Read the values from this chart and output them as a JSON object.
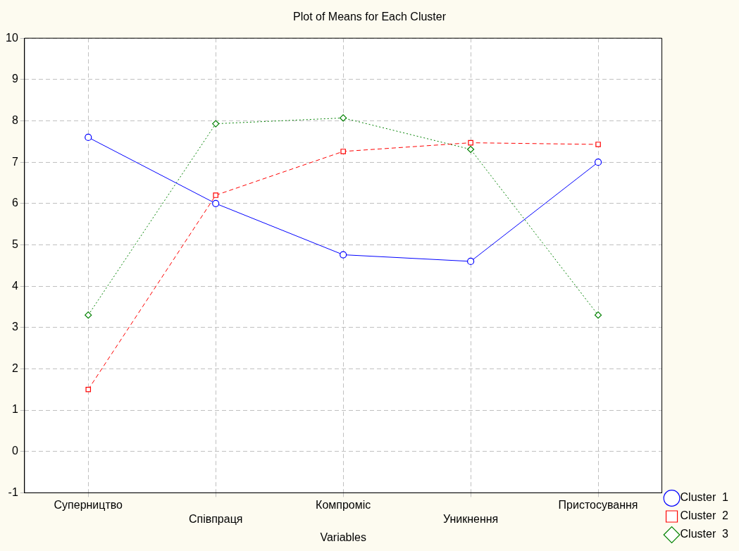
{
  "chart_data": {
    "type": "line",
    "title": "Plot of Means for Each Cluster",
    "xlabel": "Variables",
    "categories": [
      "Суперництво",
      "Співпраця",
      "Компроміс",
      "Уникнення",
      "Пристосування"
    ],
    "series": [
      {
        "name": "Cluster  1",
        "color": "#0000ff",
        "values": [
          7.6,
          6.0,
          4.76,
          4.6,
          7.0
        ],
        "marker": "circle",
        "line_style": "solid"
      },
      {
        "name": "Cluster  2",
        "color": "#ff0000",
        "values": [
          1.5,
          6.2,
          7.26,
          7.47,
          7.43
        ],
        "marker": "square",
        "line_style": "dashed"
      },
      {
        "name": "Cluster  3",
        "color": "#008000",
        "values": [
          3.3,
          7.93,
          8.07,
          7.31,
          3.3
        ],
        "marker": "diamond",
        "line_style": "dotted"
      }
    ],
    "ylim": [
      -1,
      10
    ],
    "yticks": [
      -1,
      0,
      1,
      2,
      3,
      4,
      5,
      6,
      7,
      8,
      9,
      10
    ],
    "grid": true,
    "legend": "bottom right"
  }
}
